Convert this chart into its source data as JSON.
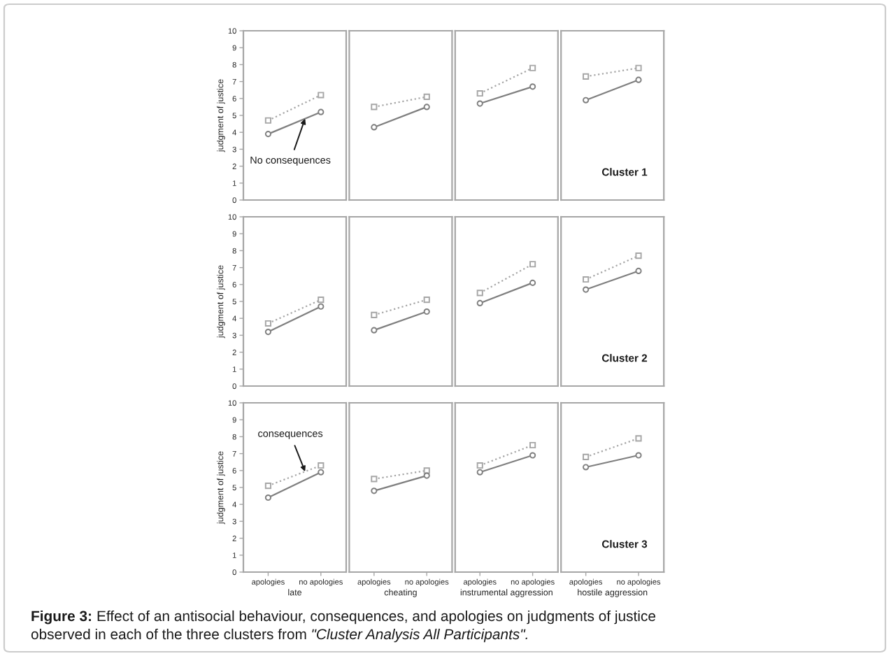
{
  "chart_data": [
    {
      "type": "line",
      "categories": [
        "apologies",
        "no apologies"
      ],
      "series": [
        {
          "color": "#a6a6a6",
          "marker": "square",
          "line_style": "dotted",
          "values": [
            4.7,
            6.2
          ]
        },
        {
          "name": "No consequences",
          "color": "#7f7f7f",
          "marker": "circle",
          "line_style": "solid",
          "values": [
            3.9,
            5.2
          ]
        }
      ],
      "ylim": [
        0,
        10
      ],
      "yticks": [
        0,
        1,
        2,
        3,
        4,
        5,
        6,
        7,
        8,
        9,
        10
      ],
      "ylabel": "judgment of justice",
      "tick_labels": "y",
      "annotations": [
        "Figure 3:",
        "Effect of an antisocial behaviour, consequences, and apologies on judgments of justice",
        "observed in each of the three clusters from",
        "\"Cluster Analysis All Participants\"."
      ]
    },
    {
      "type": "line",
      "categories": [
        "apologies",
        "no apologies"
      ],
      "series": [
        {
          "color": "#a6a6a6",
          "marker": "square",
          "line_style": "dotted",
          "values": [
            5.5,
            6.1
          ]
        },
        {
          "color": "#7f7f7f",
          "marker": "circle",
          "line_style": "solid",
          "values": [
            4.3,
            5.5
          ]
        }
      ],
      "ylim": [
        0,
        10
      ],
      "tick_labels": false
    },
    {
      "type": "line",
      "categories": [
        "apologies",
        "no apologies"
      ],
      "series": [
        {
          "color": "#a6a6a6",
          "marker": "square",
          "line_style": "dotted",
          "values": [
            6.3,
            7.8
          ]
        },
        {
          "color": "#7f7f7f",
          "marker": "circle",
          "line_style": "solid",
          "values": [
            5.7,
            6.7
          ]
        }
      ],
      "ylim": [
        0,
        10
      ],
      "tick_labels": false
    },
    {
      "type": "line",
      "categories": [
        "apologies",
        "no apologies"
      ],
      "series": [
        {
          "color": "#a6a6a6",
          "marker": "square",
          "line_style": "dotted",
          "values": [
            7.3,
            7.8
          ]
        },
        {
          "color": "#7f7f7f",
          "marker": "circle",
          "line_style": "solid",
          "values": [
            5.9,
            7.1
          ]
        }
      ],
      "ylim": [
        0,
        10
      ],
      "tick_labels": false,
      "annotations": [
        "Cluster 1"
      ]
    },
    {
      "type": "line",
      "categories": [
        "apologies",
        "no apologies"
      ],
      "series": [
        {
          "color": "#a6a6a6",
          "marker": "square",
          "line_style": "dotted",
          "values": [
            3.7,
            5.1
          ]
        },
        {
          "color": "#7f7f7f",
          "marker": "circle",
          "line_style": "solid",
          "values": [
            3.2,
            4.7
          ]
        }
      ],
      "ylim": [
        0,
        10
      ],
      "yticks": [
        0,
        1,
        2,
        3,
        4,
        5,
        6,
        7,
        8,
        9,
        10
      ],
      "ylabel": "judgment of justice",
      "tick_labels": "y"
    },
    {
      "type": "line",
      "categories": [
        "apologies",
        "no apologies"
      ],
      "series": [
        {
          "color": "#a6a6a6",
          "marker": "square",
          "line_style": "dotted",
          "values": [
            4.2,
            5.1
          ]
        },
        {
          "color": "#7f7f7f",
          "marker": "circle",
          "line_style": "solid",
          "values": [
            3.3,
            4.4
          ]
        }
      ],
      "ylim": [
        0,
        10
      ],
      "tick_labels": false
    },
    {
      "type": "line",
      "categories": [
        "apologies",
        "no apologies"
      ],
      "series": [
        {
          "color": "#a6a6a6",
          "marker": "square",
          "line_style": "dotted",
          "values": [
            5.5,
            7.2
          ]
        },
        {
          "color": "#7f7f7f",
          "marker": "circle",
          "line_style": "solid",
          "values": [
            4.9,
            6.1
          ]
        }
      ],
      "ylim": [
        0,
        10
      ],
      "tick_labels": false
    },
    {
      "type": "line",
      "categories": [
        "apologies",
        "no apologies"
      ],
      "series": [
        {
          "color": "#a6a6a6",
          "marker": "square",
          "line_style": "dotted",
          "values": [
            6.3,
            7.7
          ]
        },
        {
          "color": "#7f7f7f",
          "marker": "circle",
          "line_style": "solid",
          "values": [
            5.7,
            6.8
          ]
        }
      ],
      "ylim": [
        0,
        10
      ],
      "tick_labels": false,
      "annotations": [
        "Cluster 2"
      ]
    },
    {
      "type": "line",
      "categories": [
        "apologies",
        "no apologies"
      ],
      "series": [
        {
          "name": "consequences",
          "color": "#a6a6a6",
          "marker": "square",
          "line_style": "dotted",
          "values": [
            5.1,
            6.3
          ]
        },
        {
          "color": "#7f7f7f",
          "marker": "circle",
          "line_style": "solid",
          "values": [
            4.4,
            5.9
          ]
        }
      ],
      "ylim": [
        0,
        10
      ],
      "yticks": [
        0,
        1,
        2,
        3,
        4,
        5,
        6,
        7,
        8,
        9,
        10
      ],
      "ylabel": "judgment of justice",
      "xlabel": "late"
    },
    {
      "type": "line",
      "categories": [
        "apologies",
        "no apologies"
      ],
      "series": [
        {
          "color": "#a6a6a6",
          "marker": "square",
          "line_style": "dotted",
          "values": [
            5.5,
            6.0
          ]
        },
        {
          "color": "#7f7f7f",
          "marker": "circle",
          "line_style": "solid",
          "values": [
            4.8,
            5.7
          ]
        }
      ],
      "ylim": [
        0,
        10
      ],
      "xlabel": "cheating",
      "tick_labels": "x"
    },
    {
      "type": "line",
      "categories": [
        "apologies",
        "no apologies"
      ],
      "series": [
        {
          "color": "#a6a6a6",
          "marker": "square",
          "line_style": "dotted",
          "values": [
            6.3,
            7.5
          ]
        },
        {
          "color": "#7f7f7f",
          "marker": "circle",
          "line_style": "solid",
          "values": [
            5.9,
            6.9
          ]
        }
      ],
      "ylim": [
        0,
        10
      ],
      "xlabel": "instrumental aggression",
      "tick_labels": "x"
    },
    {
      "type": "line",
      "categories": [
        "apologies",
        "no apologies"
      ],
      "series": [
        {
          "color": "#a6a6a6",
          "marker": "square",
          "line_style": "dotted",
          "values": [
            6.8,
            7.9
          ]
        },
        {
          "color": "#7f7f7f",
          "marker": "circle",
          "line_style": "solid",
          "values": [
            6.2,
            6.9
          ]
        }
      ],
      "ylim": [
        0,
        10
      ],
      "xlabel": "hostile aggression",
      "tick_labels": "x",
      "annotations": [
        "Cluster 3"
      ]
    }
  ]
}
